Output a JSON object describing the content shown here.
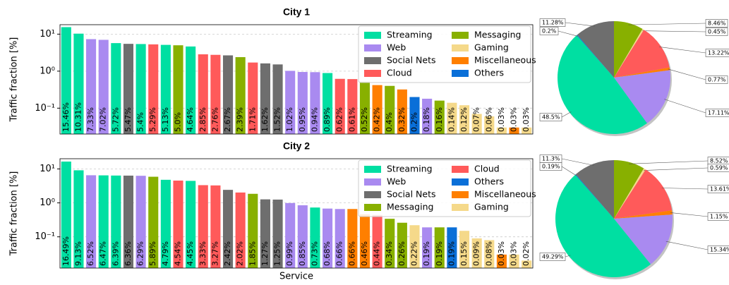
{
  "chart_data": [
    {
      "type": "bar",
      "title": "City 1",
      "ylabel": "Traffic fraction [%]",
      "log": true,
      "grid": true,
      "legend_loc": "upper right",
      "legend_ncol": 2,
      "ylim": [
        0.02,
        18
      ],
      "yticks": [
        {
          "value": 0.1,
          "label": "10⁻¹"
        },
        {
          "value": 1,
          "label": "10⁰"
        },
        {
          "value": 10,
          "label": "10¹"
        }
      ],
      "values": [
        15.46,
        10.31,
        7.33,
        7.02,
        5.72,
        5.47,
        5.4,
        5.29,
        5.13,
        5.0,
        4.64,
        2.85,
        2.76,
        2.67,
        2.39,
        1.71,
        1.62,
        1.52,
        1.02,
        0.95,
        0.94,
        0.89,
        0.62,
        0.61,
        0.52,
        0.42,
        0.4,
        0.32,
        0.2,
        0.18,
        0.16,
        0.14,
        0.12,
        0.07,
        0.06,
        0.03,
        0.03,
        0.03
      ],
      "value_labels": [
        "15.46%",
        "10.31%",
        "7.33%",
        "7.02%",
        "5.72%",
        "5.47%",
        "5.4%",
        "5.29%",
        "5.13%",
        "5.0%",
        "4.64%",
        "2.85%",
        "2.76%",
        "2.67%",
        "2.39%",
        "1.71%",
        "1.62%",
        "1.52%",
        "1.02%",
        "0.95%",
        "0.94%",
        "0.89%",
        "0.62%",
        "0.61%",
        "0.52%",
        "0.42%",
        "0.4%",
        "0.32%",
        "0.2%",
        "0.18%",
        "0.16%",
        "0.14%",
        "0.12%",
        "0.07%",
        "0.06%",
        "0.03%",
        "0.03%",
        "0.03%"
      ],
      "colors": [
        "#00dfa2",
        "#00dfa2",
        "#a98af0",
        "#a98af0",
        "#00dfa2",
        "#6e6e6e",
        "#00dfa2",
        "#ff5a5a",
        "#00dfa2",
        "#88b000",
        "#00dfa2",
        "#ff5a5a",
        "#ff5a5a",
        "#6e6e6e",
        "#88b000",
        "#ff5a5a",
        "#6e6e6e",
        "#6e6e6e",
        "#a98af0",
        "#a98af0",
        "#a98af0",
        "#00dfa2",
        "#ff5a5a",
        "#ff5a5a",
        "#88b000",
        "#ff7f00",
        "#88b000",
        "#ff7f00",
        "#0a6fd8",
        "#a98af0",
        "#88b000",
        "#f5d98a",
        "#f5d98a",
        "#f5d98a",
        "#f5d98a",
        "#f5d98a",
        "#ff7f00",
        "#f5d98a"
      ],
      "legend": [
        {
          "name": "Streaming",
          "color": "#00dfa2"
        },
        {
          "name": "Web",
          "color": "#a98af0"
        },
        {
          "name": "Social Nets",
          "color": "#6e6e6e"
        },
        {
          "name": "Cloud",
          "color": "#ff5a5a"
        },
        {
          "name": "Messaging",
          "color": "#88b000"
        },
        {
          "name": "Gaming",
          "color": "#f5d98a"
        },
        {
          "name": "Miscellaneous",
          "color": "#ff7f00"
        },
        {
          "name": "Others",
          "color": "#0a6fd8"
        }
      ]
    },
    {
      "type": "pie",
      "startangle": 90,
      "counterclock": false,
      "values": [
        8.46,
        0.45,
        13.22,
        0.77,
        17.11,
        48.5,
        0.2,
        11.28
      ],
      "value_labels": [
        "8.46%",
        "0.45%",
        "13.22%",
        "0.77%",
        "17.11%",
        "48.5%",
        "0.2%",
        "11.28%"
      ],
      "colors": [
        "#88b000",
        "#f5d98a",
        "#ff5a5a",
        "#ff7f00",
        "#a98af0",
        "#00dfa2",
        "#0a6fd8",
        "#6e6e6e"
      ]
    },
    {
      "type": "bar",
      "title": "City 2",
      "ylabel": "Traffic fraction [%]",
      "xlabel": "Service",
      "log": true,
      "grid": true,
      "legend_loc": "upper right",
      "legend_ncol": 2,
      "ylim": [
        0.012,
        20
      ],
      "yticks": [
        {
          "value": 0.1,
          "label": "10⁻¹"
        },
        {
          "value": 1,
          "label": "10⁰"
        },
        {
          "value": 10,
          "label": "10¹"
        }
      ],
      "values": [
        16.49,
        9.13,
        6.52,
        6.47,
        6.39,
        6.36,
        6.29,
        5.89,
        4.79,
        4.54,
        4.45,
        3.33,
        3.27,
        2.42,
        2.02,
        1.85,
        1.27,
        1.25,
        0.99,
        0.85,
        0.73,
        0.68,
        0.66,
        0.66,
        0.46,
        0.44,
        0.34,
        0.26,
        0.22,
        0.19,
        0.19,
        0.19,
        0.15,
        0.09,
        0.08,
        0.03,
        0.03,
        0.02
      ],
      "value_labels": [
        "16.49%",
        "9.13%",
        "6.52%",
        "6.47%",
        "6.39%",
        "6.36%",
        "6.29%",
        "5.89%",
        "4.79%",
        "4.54%",
        "4.45%",
        "3.33%",
        "3.27%",
        "2.42%",
        "2.02%",
        "1.85%",
        "1.27%",
        "1.25%",
        "0.99%",
        "0.85%",
        "0.73%",
        "0.68%",
        "0.66%",
        "0.66%",
        "0.46%",
        "0.44%",
        "0.34%",
        "0.26%",
        "0.22%",
        "0.19%",
        "0.19%",
        "0.19%",
        "0.15%",
        "0.09%",
        "0.08%",
        "0.03%",
        "0.03%",
        "0.02%"
      ],
      "colors": [
        "#00dfa2",
        "#00dfa2",
        "#a98af0",
        "#00dfa2",
        "#00dfa2",
        "#6e6e6e",
        "#a98af0",
        "#88b000",
        "#00dfa2",
        "#ff5a5a",
        "#00dfa2",
        "#ff5a5a",
        "#ff5a5a",
        "#6e6e6e",
        "#ff5a5a",
        "#88b000",
        "#6e6e6e",
        "#6e6e6e",
        "#a98af0",
        "#a98af0",
        "#00dfa2",
        "#a98af0",
        "#a98af0",
        "#ff7f00",
        "#ff7f00",
        "#ff5a5a",
        "#88b000",
        "#88b000",
        "#f5d98a",
        "#a98af0",
        "#88b000",
        "#0a6fd8",
        "#f5d98a",
        "#f5d98a",
        "#f5d98a",
        "#ff7f00",
        "#f5d98a",
        "#f5d98a"
      ],
      "legend": [
        {
          "name": "Streaming",
          "color": "#00dfa2"
        },
        {
          "name": "Web",
          "color": "#a98af0"
        },
        {
          "name": "Social Nets",
          "color": "#6e6e6e"
        },
        {
          "name": "Messaging",
          "color": "#88b000"
        },
        {
          "name": "Cloud",
          "color": "#ff5a5a"
        },
        {
          "name": "Others",
          "color": "#0a6fd8"
        },
        {
          "name": "Miscellaneous",
          "color": "#ff7f00"
        },
        {
          "name": "Gaming",
          "color": "#f5d98a"
        }
      ]
    },
    {
      "type": "pie",
      "startangle": 90,
      "counterclock": false,
      "values": [
        8.52,
        0.59,
        13.61,
        1.15,
        15.34,
        49.29,
        0.19,
        11.3
      ],
      "value_labels": [
        "8.52%",
        "0.59%",
        "13.61%",
        "1.15%",
        "15.34%",
        "49.29%",
        "0.19%",
        "11.3%"
      ],
      "colors": [
        "#88b000",
        "#f5d98a",
        "#ff5a5a",
        "#ff7f00",
        "#a98af0",
        "#00dfa2",
        "#0a6fd8",
        "#6e6e6e"
      ]
    }
  ]
}
